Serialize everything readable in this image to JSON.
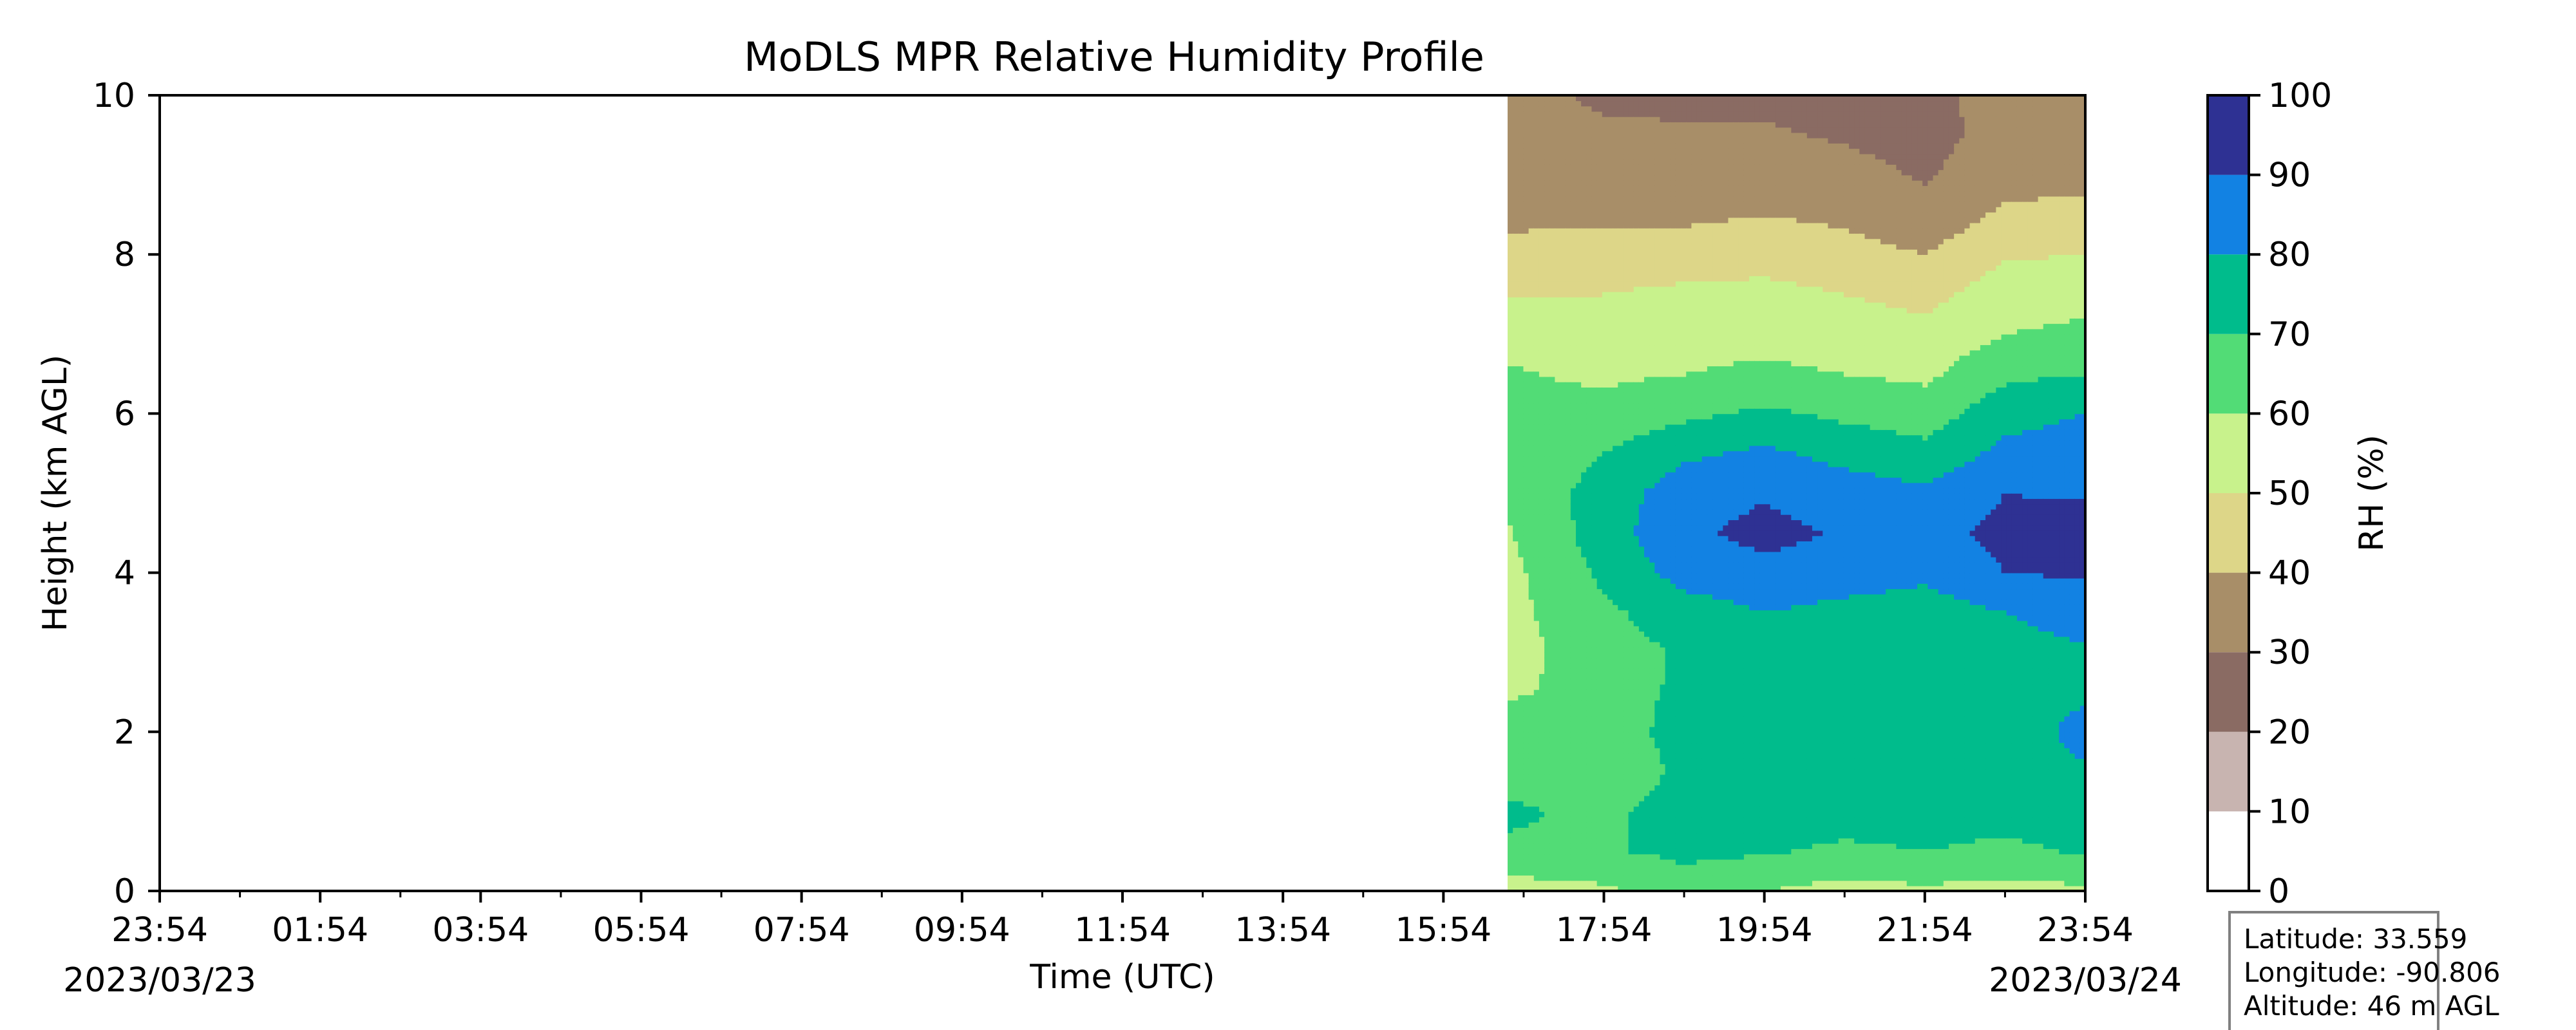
{
  "chart_data": {
    "type": "heatmap",
    "title": "MoDLS MPR Relative Humidity Profile",
    "xlabel": "Time (UTC)",
    "ylabel": "Height (km AGL)",
    "x_ticks": [
      "23:54",
      "01:54",
      "03:54",
      "05:54",
      "07:54",
      "09:54",
      "11:54",
      "13:54",
      "15:54",
      "17:54",
      "19:54",
      "21:54",
      "23:54"
    ],
    "x_start_date": "2023/03/23",
    "x_end_date": "2023/03/24",
    "x_range_hours": [
      0,
      24
    ],
    "y_ticks": [
      "0",
      "2",
      "4",
      "6",
      "8",
      "10"
    ],
    "ylim": [
      0,
      10
    ],
    "data_start_hour": 16.8,
    "colorbar": {
      "label": "RH (%)",
      "ticks": [
        "0",
        "10",
        "20",
        "30",
        "40",
        "50",
        "60",
        "70",
        "80",
        "90",
        "100"
      ],
      "levels": [
        0,
        10,
        20,
        30,
        40,
        50,
        60,
        70,
        80,
        90,
        100
      ],
      "colors": [
        "#ffffff",
        "#c8b4b0",
        "#8a6b63",
        "#a88e68",
        "#ddd688",
        "#c8f28c",
        "#52dc76",
        "#00bc8c",
        "#1282e3",
        "#2e3193"
      ]
    },
    "profile": {
      "heights_km": [
        0.0,
        0.5,
        1.0,
        1.5,
        2.0,
        2.5,
        3.0,
        3.5,
        4.0,
        4.5,
        5.0,
        5.5,
        6.0,
        6.5,
        7.0,
        7.5,
        8.0,
        8.5,
        9.0,
        9.5,
        10.0
      ],
      "columns": [
        {
          "hour": 16.8,
          "rh": [
            55,
            68,
            72,
            66,
            68,
            58,
            56,
            57,
            57,
            59,
            62,
            63,
            62,
            61,
            57,
            49,
            44,
            37,
            33,
            33,
            34
          ]
        },
        {
          "hour": 18.0,
          "rh": [
            58,
            69,
            67,
            60,
            63,
            65,
            66,
            68,
            72,
            75,
            74,
            70,
            64,
            58,
            54,
            50,
            45,
            38,
            34,
            32,
            28
          ]
        },
        {
          "hour": 19.0,
          "rh": [
            66,
            72,
            77,
            73,
            75,
            72,
            71,
            75,
            84,
            88,
            86,
            78,
            68,
            60,
            56,
            52,
            45,
            38,
            34,
            31,
            28
          ]
        },
        {
          "hour": 20.0,
          "rh": [
            60,
            71,
            76,
            76,
            75,
            70,
            72,
            80,
            87,
            93,
            89,
            82,
            72,
            62,
            57,
            53,
            46,
            40,
            35,
            31,
            28
          ]
        },
        {
          "hour": 21.0,
          "rh": [
            56,
            68,
            75,
            76,
            74,
            73,
            75,
            77,
            85,
            89,
            85,
            77,
            68,
            60,
            55,
            50,
            44,
            38,
            33,
            29,
            27
          ]
        },
        {
          "hour": 22.0,
          "rh": [
            58,
            70,
            74,
            75,
            74,
            73,
            72,
            75,
            82,
            86,
            82,
            73,
            65,
            58,
            53,
            47,
            40,
            33,
            29,
            27,
            27
          ]
        },
        {
          "hour": 23.0,
          "rh": [
            56,
            68,
            73,
            75,
            75,
            74,
            75,
            80,
            90,
            93,
            90,
            83,
            76,
            68,
            60,
            55,
            49,
            42,
            36,
            33,
            34
          ]
        },
        {
          "hour": 24.0,
          "rh": [
            58,
            71,
            75,
            79,
            83,
            79,
            78,
            86,
            91,
            94,
            89,
            86,
            80,
            70,
            62,
            57,
            50,
            43,
            37,
            34,
            35
          ]
        }
      ]
    }
  },
  "info_box": {
    "latitude": "Latitude: 33.559",
    "longitude": "Longitude: -90.806",
    "altitude": "Altitude: 46 m AGL"
  }
}
